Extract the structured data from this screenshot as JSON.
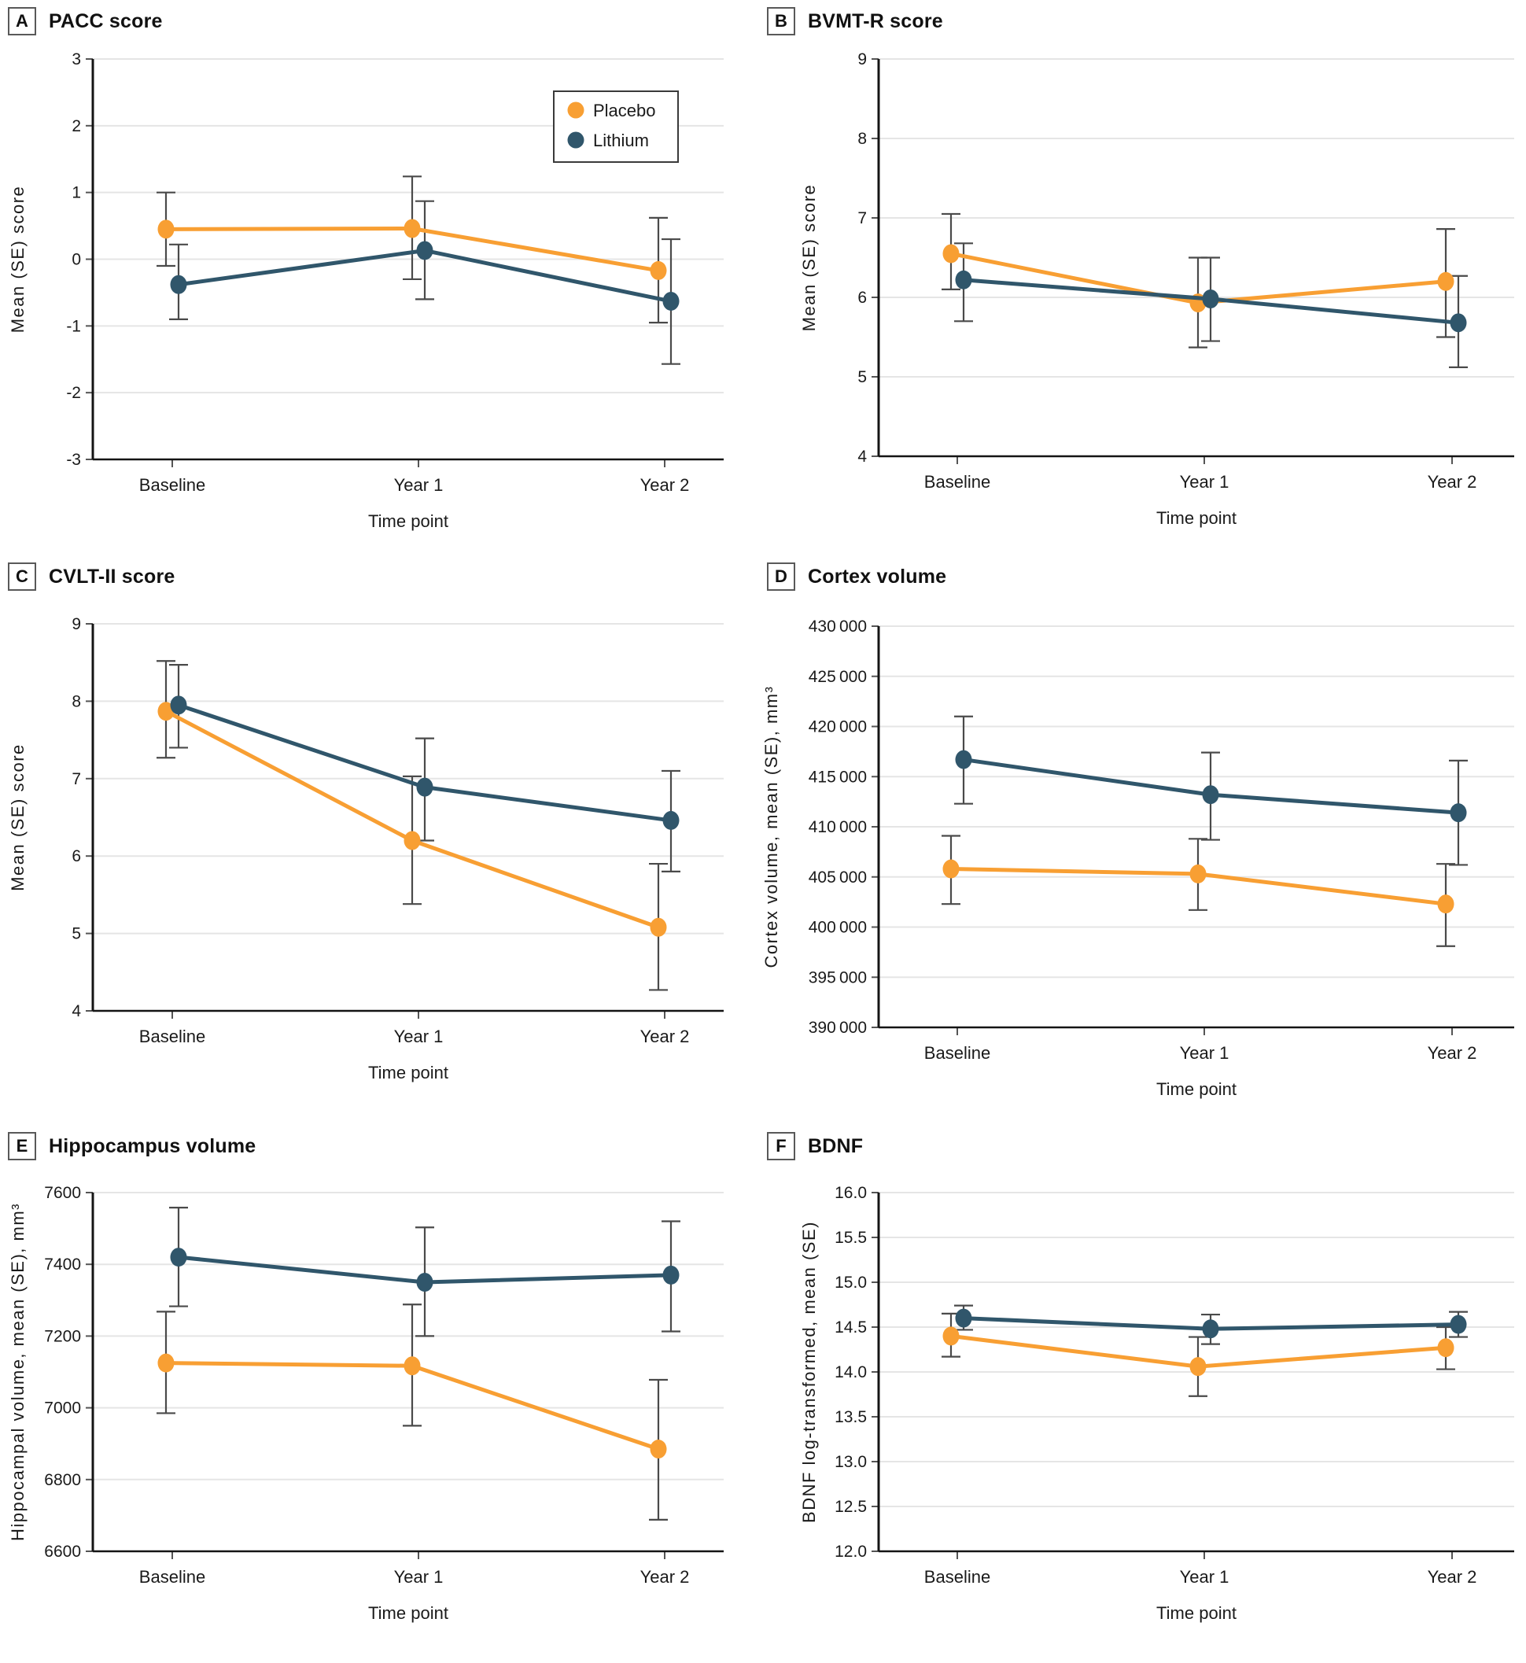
{
  "figure": {
    "x_axis_label": "Time point",
    "categories": [
      "Baseline",
      "Year 1",
      "Year 2"
    ]
  },
  "legend": {
    "items": [
      {
        "label": "Placebo",
        "color": "#F89F33"
      },
      {
        "label": "Lithium",
        "color": "#30566B"
      }
    ]
  },
  "colors": {
    "placebo": "#F89F33",
    "lithium": "#30566B",
    "error_bar": "#4A4A4A",
    "gridline": "#E5E5E5",
    "axis": "#141414",
    "tick": "#555555",
    "text": "#1A1A1A"
  },
  "chart_data": [
    {
      "panel": "A",
      "type": "line",
      "title": "PACC score",
      "categories": [
        "Baseline",
        "Year 1",
        "Year 2"
      ],
      "series": [
        {
          "name": "Placebo",
          "values": [
            0.45,
            0.46,
            -0.17
          ],
          "err_lo": [
            -0.1,
            -0.3,
            -0.95
          ],
          "err_hi": [
            1.0,
            1.24,
            0.62
          ]
        },
        {
          "name": "Lithium",
          "values": [
            -0.38,
            0.13,
            -0.63
          ],
          "err_lo": [
            -0.9,
            -0.6,
            -1.57
          ],
          "err_hi": [
            0.22,
            0.87,
            0.3
          ]
        }
      ],
      "ylabel": "Mean (SE) score",
      "ylim": [
        -3,
        3
      ]
    },
    {
      "panel": "B",
      "type": "line",
      "title": "BVMT-R score",
      "categories": [
        "Baseline",
        "Year 1",
        "Year 2"
      ],
      "series": [
        {
          "name": "Placebo",
          "values": [
            6.55,
            5.93,
            6.2
          ],
          "err_lo": [
            6.1,
            5.37,
            5.5
          ],
          "err_hi": [
            7.05,
            6.5,
            6.86
          ]
        },
        {
          "name": "Lithium",
          "values": [
            6.22,
            5.98,
            5.68
          ],
          "err_lo": [
            5.7,
            5.45,
            5.12
          ],
          "err_hi": [
            6.68,
            6.5,
            6.27
          ]
        }
      ],
      "ylabel": "Mean (SE) score",
      "ylim": [
        4,
        9
      ]
    },
    {
      "panel": "C",
      "type": "line",
      "title": "CVLT-II score",
      "categories": [
        "Baseline",
        "Year 1",
        "Year 2"
      ],
      "series": [
        {
          "name": "Placebo",
          "values": [
            7.87,
            6.2,
            5.08
          ],
          "err_lo": [
            7.27,
            5.38,
            4.27
          ],
          "err_hi": [
            8.52,
            7.03,
            5.9
          ]
        },
        {
          "name": "Lithium",
          "values": [
            7.95,
            6.89,
            6.46
          ],
          "err_lo": [
            7.4,
            6.2,
            5.8
          ],
          "err_hi": [
            8.47,
            7.52,
            7.1
          ]
        }
      ],
      "ylabel": "Mean (SE) score",
      "ylim": [
        4,
        9
      ]
    },
    {
      "panel": "D",
      "type": "line",
      "title": "Cortex volume",
      "categories": [
        "Baseline",
        "Year 1",
        "Year 2"
      ],
      "series": [
        {
          "name": "Placebo",
          "values": [
            405800,
            405300,
            402300
          ],
          "err_lo": [
            402300,
            401700,
            398100
          ],
          "err_hi": [
            409100,
            408800,
            406300
          ]
        },
        {
          "name": "Lithium",
          "values": [
            416700,
            413200,
            411400
          ],
          "err_lo": [
            412300,
            408700,
            406200
          ],
          "err_hi": [
            421000,
            417400,
            416600
          ]
        }
      ],
      "ylabel": "Cortex volume, mean (SE), mm³",
      "ylim": [
        390000,
        430000
      ]
    },
    {
      "panel": "E",
      "type": "line",
      "title": "Hippocampus volume",
      "categories": [
        "Baseline",
        "Year 1",
        "Year 2"
      ],
      "series": [
        {
          "name": "Placebo",
          "values": [
            7125,
            7117,
            6885
          ],
          "err_lo": [
            6985,
            6950,
            6688
          ],
          "err_hi": [
            7268,
            7288,
            7078
          ]
        },
        {
          "name": "Lithium",
          "values": [
            7420,
            7350,
            7370
          ],
          "err_lo": [
            7283,
            7200,
            7213
          ],
          "err_hi": [
            7558,
            7503,
            7520
          ]
        }
      ],
      "ylabel": "Hippocampal volume, mean (SE), mm³",
      "ylim": [
        6600,
        7600
      ]
    },
    {
      "panel": "F",
      "type": "line",
      "title": "BDNF",
      "categories": [
        "Baseline",
        "Year 1",
        "Year 2"
      ],
      "series": [
        {
          "name": "Placebo",
          "values": [
            14.4,
            14.06,
            14.27
          ],
          "err_lo": [
            14.17,
            13.73,
            14.03
          ],
          "err_hi": [
            14.65,
            14.39,
            14.5
          ]
        },
        {
          "name": "Lithium",
          "values": [
            14.6,
            14.48,
            14.53
          ],
          "err_lo": [
            14.47,
            14.31,
            14.39
          ],
          "err_hi": [
            14.74,
            14.64,
            14.67
          ]
        }
      ],
      "ylabel": "BDNF log-transformed, mean (SE)",
      "ylim": [
        12.0,
        16.0
      ]
    }
  ],
  "panels": [
    {
      "letter": "A",
      "title": "PACC score",
      "ylabel": "Mean (SE) score",
      "ylim": [
        -3,
        3
      ],
      "ytick_step": 1,
      "ytick_decimals": 0,
      "thousands": false,
      "show_legend": true
    },
    {
      "letter": "B",
      "title": "BVMT-R score",
      "ylabel": "Mean (SE) score",
      "ylim": [
        4,
        9
      ],
      "ytick_step": 1,
      "ytick_decimals": 0,
      "thousands": false,
      "show_legend": false
    },
    {
      "letter": "C",
      "title": "CVLT-II score",
      "ylabel": "Mean (SE) score",
      "ylim": [
        4,
        9
      ],
      "ytick_step": 1,
      "ytick_decimals": 0,
      "thousands": false,
      "show_legend": false
    },
    {
      "letter": "D",
      "title": "Cortex volume",
      "ylabel": "Cortex volume, mean (SE), mm³",
      "ylim": [
        390000,
        430000
      ],
      "ytick_step": 5000,
      "ytick_decimals": 0,
      "thousands": true,
      "show_legend": false
    },
    {
      "letter": "E",
      "title": "Hippocampus volume",
      "ylabel": "Hippocampal volume, mean (SE), mm³",
      "ylim": [
        6600,
        7600
      ],
      "ytick_step": 200,
      "ytick_decimals": 0,
      "thousands": false,
      "show_legend": false
    },
    {
      "letter": "F",
      "title": "BDNF",
      "ylabel": "BDNF log-transformed, mean (SE)",
      "ylim": [
        12.0,
        16.0
      ],
      "ytick_step": 0.5,
      "ytick_decimals": 1,
      "thousands": false,
      "show_legend": false
    }
  ]
}
